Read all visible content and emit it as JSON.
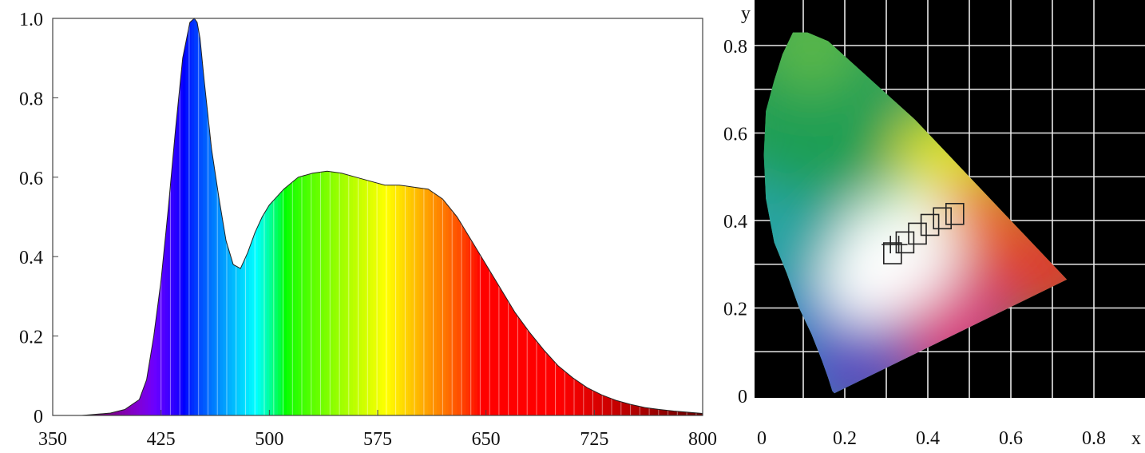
{
  "chart_data": [
    {
      "type": "area",
      "title": "",
      "xlabel": "",
      "ylabel": "",
      "xlim": [
        350,
        800
      ],
      "ylim": [
        0,
        1.0
      ],
      "x_ticks": [
        350,
        425,
        500,
        575,
        650,
        725,
        800
      ],
      "x_tick_labels": [
        "350",
        "425",
        "500",
        "575",
        "650",
        "725",
        "800"
      ],
      "y_ticks": [
        0,
        0.2,
        0.4,
        0.6,
        0.8,
        1.0
      ],
      "y_tick_labels": [
        "0",
        "0.2",
        "0.4",
        "0.6",
        "0.8",
        "1.0"
      ],
      "grid": false,
      "fill": "visible-spectrum colors by wavelength",
      "series": [
        {
          "x": [
            370,
            380,
            390,
            400,
            410,
            415,
            420,
            425,
            430,
            435,
            440,
            445,
            448,
            450,
            452,
            455,
            460,
            465,
            470,
            475,
            480,
            485,
            490,
            495,
            500,
            510,
            520,
            530,
            540,
            550,
            560,
            570,
            580,
            590,
            600,
            610,
            620,
            630,
            640,
            650,
            660,
            670,
            680,
            690,
            700,
            710,
            720,
            730,
            740,
            750,
            760,
            770,
            780,
            790,
            800
          ],
          "y": [
            0.0,
            0.003,
            0.006,
            0.015,
            0.04,
            0.09,
            0.2,
            0.34,
            0.52,
            0.72,
            0.9,
            0.99,
            1.0,
            0.99,
            0.95,
            0.84,
            0.67,
            0.55,
            0.44,
            0.38,
            0.37,
            0.41,
            0.46,
            0.5,
            0.53,
            0.57,
            0.6,
            0.61,
            0.615,
            0.61,
            0.6,
            0.59,
            0.58,
            0.58,
            0.575,
            0.57,
            0.545,
            0.5,
            0.44,
            0.38,
            0.32,
            0.26,
            0.21,
            0.165,
            0.125,
            0.095,
            0.07,
            0.052,
            0.038,
            0.028,
            0.02,
            0.015,
            0.011,
            0.008,
            0.005
          ]
        }
      ]
    },
    {
      "type": "scatter",
      "title": "",
      "xlabel": "x",
      "ylabel": "y",
      "xlim": [
        0,
        0.8
      ],
      "ylim": [
        0,
        0.8
      ],
      "x_ticks": [
        0,
        0.2,
        0.4,
        0.6,
        0.8
      ],
      "x_tick_labels": [
        "0",
        "0.2",
        "0.4",
        "0.6",
        "0.8"
      ],
      "y_ticks": [
        0,
        0.2,
        0.4,
        0.6,
        0.8
      ],
      "y_tick_labels": [
        "0",
        "0.2",
        "0.4",
        "0.6",
        "0.8"
      ],
      "grid": true,
      "background": "#000000",
      "locus": [
        [
          0.175,
          0.005
        ],
        [
          0.17,
          0.01
        ],
        [
          0.16,
          0.04
        ],
        [
          0.145,
          0.08
        ],
        [
          0.12,
          0.14
        ],
        [
          0.09,
          0.2
        ],
        [
          0.06,
          0.28
        ],
        [
          0.03,
          0.35
        ],
        [
          0.01,
          0.45
        ],
        [
          0.005,
          0.55
        ],
        [
          0.01,
          0.65
        ],
        [
          0.03,
          0.72
        ],
        [
          0.05,
          0.78
        ],
        [
          0.075,
          0.83
        ],
        [
          0.11,
          0.83
        ],
        [
          0.16,
          0.81
        ],
        [
          0.23,
          0.75
        ],
        [
          0.3,
          0.69
        ],
        [
          0.37,
          0.63
        ],
        [
          0.44,
          0.56
        ],
        [
          0.51,
          0.49
        ],
        [
          0.58,
          0.42
        ],
        [
          0.65,
          0.35
        ],
        [
          0.735,
          0.265
        ]
      ],
      "planckian_boxes": [
        [
          0.315,
          0.325
        ],
        [
          0.345,
          0.35
        ],
        [
          0.375,
          0.37
        ],
        [
          0.405,
          0.39
        ],
        [
          0.435,
          0.405
        ],
        [
          0.465,
          0.415
        ]
      ],
      "crosses": [
        [
          0.31,
          0.345
        ],
        [
          0.33,
          0.345
        ]
      ]
    }
  ]
}
